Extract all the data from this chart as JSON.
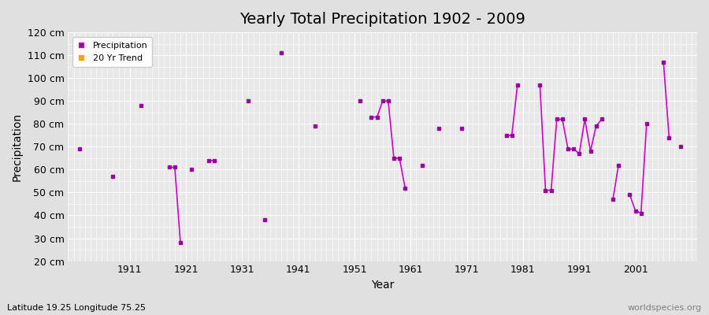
{
  "title": "Yearly Total Precipitation 1902 - 2009",
  "xlabel": "Year",
  "ylabel": "Precipitation",
  "subtitle": "Latitude 19.25 Longitude 75.25",
  "watermark": "worldspecies.org",
  "ylim": [
    20,
    120
  ],
  "yticks": [
    20,
    30,
    40,
    50,
    60,
    70,
    80,
    90,
    100,
    110,
    120
  ],
  "ytick_labels": [
    "20 cm",
    "30 cm",
    "40 cm",
    "50 cm",
    "60 cm",
    "70 cm",
    "80 cm",
    "90 cm",
    "100 cm",
    "110 cm",
    "120 cm"
  ],
  "xlim": [
    1900,
    2012
  ],
  "xticks": [
    1911,
    1921,
    1931,
    1941,
    1951,
    1961,
    1971,
    1981,
    1991,
    2001
  ],
  "line_color": "#cc00cc",
  "marker_color": "#990099",
  "trend_color": "#ffa500",
  "background_color": "#e0e0e0",
  "plot_bg_color": "#e8e8e8",
  "grid_color": "#ffffff",
  "years": [
    1902,
    1908,
    1913,
    1918,
    1919,
    1920,
    1922,
    1925,
    1926,
    1932,
    1935,
    1938,
    1944,
    1952,
    1954,
    1955,
    1956,
    1957,
    1958,
    1959,
    1960,
    1963,
    1966,
    1970,
    1978,
    1979,
    1980,
    1984,
    1985,
    1986,
    1987,
    1988,
    1989,
    1990,
    1991,
    1992,
    1993,
    1994,
    1995,
    1997,
    1998,
    2000,
    2001,
    2002,
    2003,
    2006,
    2007,
    2009
  ],
  "values": [
    69,
    57,
    88,
    61,
    61,
    28,
    60,
    64,
    64,
    90,
    38,
    111,
    79,
    90,
    83,
    83,
    90,
    90,
    65,
    65,
    52,
    62,
    78,
    78,
    75,
    75,
    97,
    97,
    51,
    51,
    82,
    82,
    69,
    69,
    67,
    82,
    68,
    79,
    82,
    47,
    62,
    49,
    42,
    41,
    80,
    107,
    74,
    70
  ]
}
